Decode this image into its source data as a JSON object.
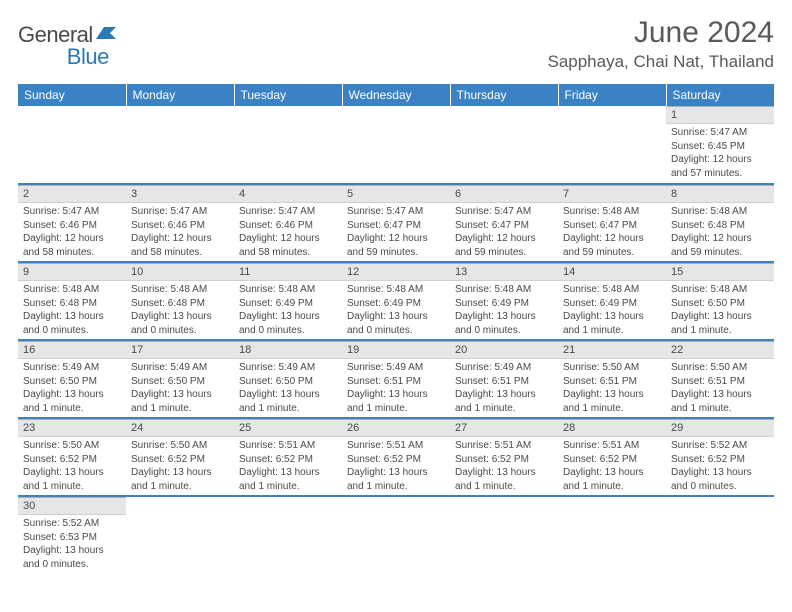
{
  "logo": {
    "text_dark": "General",
    "text_blue": "Blue"
  },
  "header": {
    "month_title": "June 2024",
    "location": "Sapphaya, Chai Nat, Thailand"
  },
  "colors": {
    "header_bg": "#3b82c4",
    "header_text": "#ffffff",
    "daynum_bg": "#e6e6e6",
    "text": "#4a4a4a",
    "row_sep": "#3b82c4"
  },
  "day_headers": [
    "Sunday",
    "Monday",
    "Tuesday",
    "Wednesday",
    "Thursday",
    "Friday",
    "Saturday"
  ],
  "weeks": [
    [
      null,
      null,
      null,
      null,
      null,
      null,
      {
        "n": "1",
        "sunrise": "Sunrise: 5:47 AM",
        "sunset": "Sunset: 6:45 PM",
        "daylight": "Daylight: 12 hours and 57 minutes."
      }
    ],
    [
      {
        "n": "2",
        "sunrise": "Sunrise: 5:47 AM",
        "sunset": "Sunset: 6:46 PM",
        "daylight": "Daylight: 12 hours and 58 minutes."
      },
      {
        "n": "3",
        "sunrise": "Sunrise: 5:47 AM",
        "sunset": "Sunset: 6:46 PM",
        "daylight": "Daylight: 12 hours and 58 minutes."
      },
      {
        "n": "4",
        "sunrise": "Sunrise: 5:47 AM",
        "sunset": "Sunset: 6:46 PM",
        "daylight": "Daylight: 12 hours and 58 minutes."
      },
      {
        "n": "5",
        "sunrise": "Sunrise: 5:47 AM",
        "sunset": "Sunset: 6:47 PM",
        "daylight": "Daylight: 12 hours and 59 minutes."
      },
      {
        "n": "6",
        "sunrise": "Sunrise: 5:47 AM",
        "sunset": "Sunset: 6:47 PM",
        "daylight": "Daylight: 12 hours and 59 minutes."
      },
      {
        "n": "7",
        "sunrise": "Sunrise: 5:48 AM",
        "sunset": "Sunset: 6:47 PM",
        "daylight": "Daylight: 12 hours and 59 minutes."
      },
      {
        "n": "8",
        "sunrise": "Sunrise: 5:48 AM",
        "sunset": "Sunset: 6:48 PM",
        "daylight": "Daylight: 12 hours and 59 minutes."
      }
    ],
    [
      {
        "n": "9",
        "sunrise": "Sunrise: 5:48 AM",
        "sunset": "Sunset: 6:48 PM",
        "daylight": "Daylight: 13 hours and 0 minutes."
      },
      {
        "n": "10",
        "sunrise": "Sunrise: 5:48 AM",
        "sunset": "Sunset: 6:48 PM",
        "daylight": "Daylight: 13 hours and 0 minutes."
      },
      {
        "n": "11",
        "sunrise": "Sunrise: 5:48 AM",
        "sunset": "Sunset: 6:49 PM",
        "daylight": "Daylight: 13 hours and 0 minutes."
      },
      {
        "n": "12",
        "sunrise": "Sunrise: 5:48 AM",
        "sunset": "Sunset: 6:49 PM",
        "daylight": "Daylight: 13 hours and 0 minutes."
      },
      {
        "n": "13",
        "sunrise": "Sunrise: 5:48 AM",
        "sunset": "Sunset: 6:49 PM",
        "daylight": "Daylight: 13 hours and 0 minutes."
      },
      {
        "n": "14",
        "sunrise": "Sunrise: 5:48 AM",
        "sunset": "Sunset: 6:49 PM",
        "daylight": "Daylight: 13 hours and 1 minute."
      },
      {
        "n": "15",
        "sunrise": "Sunrise: 5:48 AM",
        "sunset": "Sunset: 6:50 PM",
        "daylight": "Daylight: 13 hours and 1 minute."
      }
    ],
    [
      {
        "n": "16",
        "sunrise": "Sunrise: 5:49 AM",
        "sunset": "Sunset: 6:50 PM",
        "daylight": "Daylight: 13 hours and 1 minute."
      },
      {
        "n": "17",
        "sunrise": "Sunrise: 5:49 AM",
        "sunset": "Sunset: 6:50 PM",
        "daylight": "Daylight: 13 hours and 1 minute."
      },
      {
        "n": "18",
        "sunrise": "Sunrise: 5:49 AM",
        "sunset": "Sunset: 6:50 PM",
        "daylight": "Daylight: 13 hours and 1 minute."
      },
      {
        "n": "19",
        "sunrise": "Sunrise: 5:49 AM",
        "sunset": "Sunset: 6:51 PM",
        "daylight": "Daylight: 13 hours and 1 minute."
      },
      {
        "n": "20",
        "sunrise": "Sunrise: 5:49 AM",
        "sunset": "Sunset: 6:51 PM",
        "daylight": "Daylight: 13 hours and 1 minute."
      },
      {
        "n": "21",
        "sunrise": "Sunrise: 5:50 AM",
        "sunset": "Sunset: 6:51 PM",
        "daylight": "Daylight: 13 hours and 1 minute."
      },
      {
        "n": "22",
        "sunrise": "Sunrise: 5:50 AM",
        "sunset": "Sunset: 6:51 PM",
        "daylight": "Daylight: 13 hours and 1 minute."
      }
    ],
    [
      {
        "n": "23",
        "sunrise": "Sunrise: 5:50 AM",
        "sunset": "Sunset: 6:52 PM",
        "daylight": "Daylight: 13 hours and 1 minute."
      },
      {
        "n": "24",
        "sunrise": "Sunrise: 5:50 AM",
        "sunset": "Sunset: 6:52 PM",
        "daylight": "Daylight: 13 hours and 1 minute."
      },
      {
        "n": "25",
        "sunrise": "Sunrise: 5:51 AM",
        "sunset": "Sunset: 6:52 PM",
        "daylight": "Daylight: 13 hours and 1 minute."
      },
      {
        "n": "26",
        "sunrise": "Sunrise: 5:51 AM",
        "sunset": "Sunset: 6:52 PM",
        "daylight": "Daylight: 13 hours and 1 minute."
      },
      {
        "n": "27",
        "sunrise": "Sunrise: 5:51 AM",
        "sunset": "Sunset: 6:52 PM",
        "daylight": "Daylight: 13 hours and 1 minute."
      },
      {
        "n": "28",
        "sunrise": "Sunrise: 5:51 AM",
        "sunset": "Sunset: 6:52 PM",
        "daylight": "Daylight: 13 hours and 1 minute."
      },
      {
        "n": "29",
        "sunrise": "Sunrise: 5:52 AM",
        "sunset": "Sunset: 6:52 PM",
        "daylight": "Daylight: 13 hours and 0 minutes."
      }
    ],
    [
      {
        "n": "30",
        "sunrise": "Sunrise: 5:52 AM",
        "sunset": "Sunset: 6:53 PM",
        "daylight": "Daylight: 13 hours and 0 minutes."
      },
      null,
      null,
      null,
      null,
      null,
      null
    ]
  ]
}
